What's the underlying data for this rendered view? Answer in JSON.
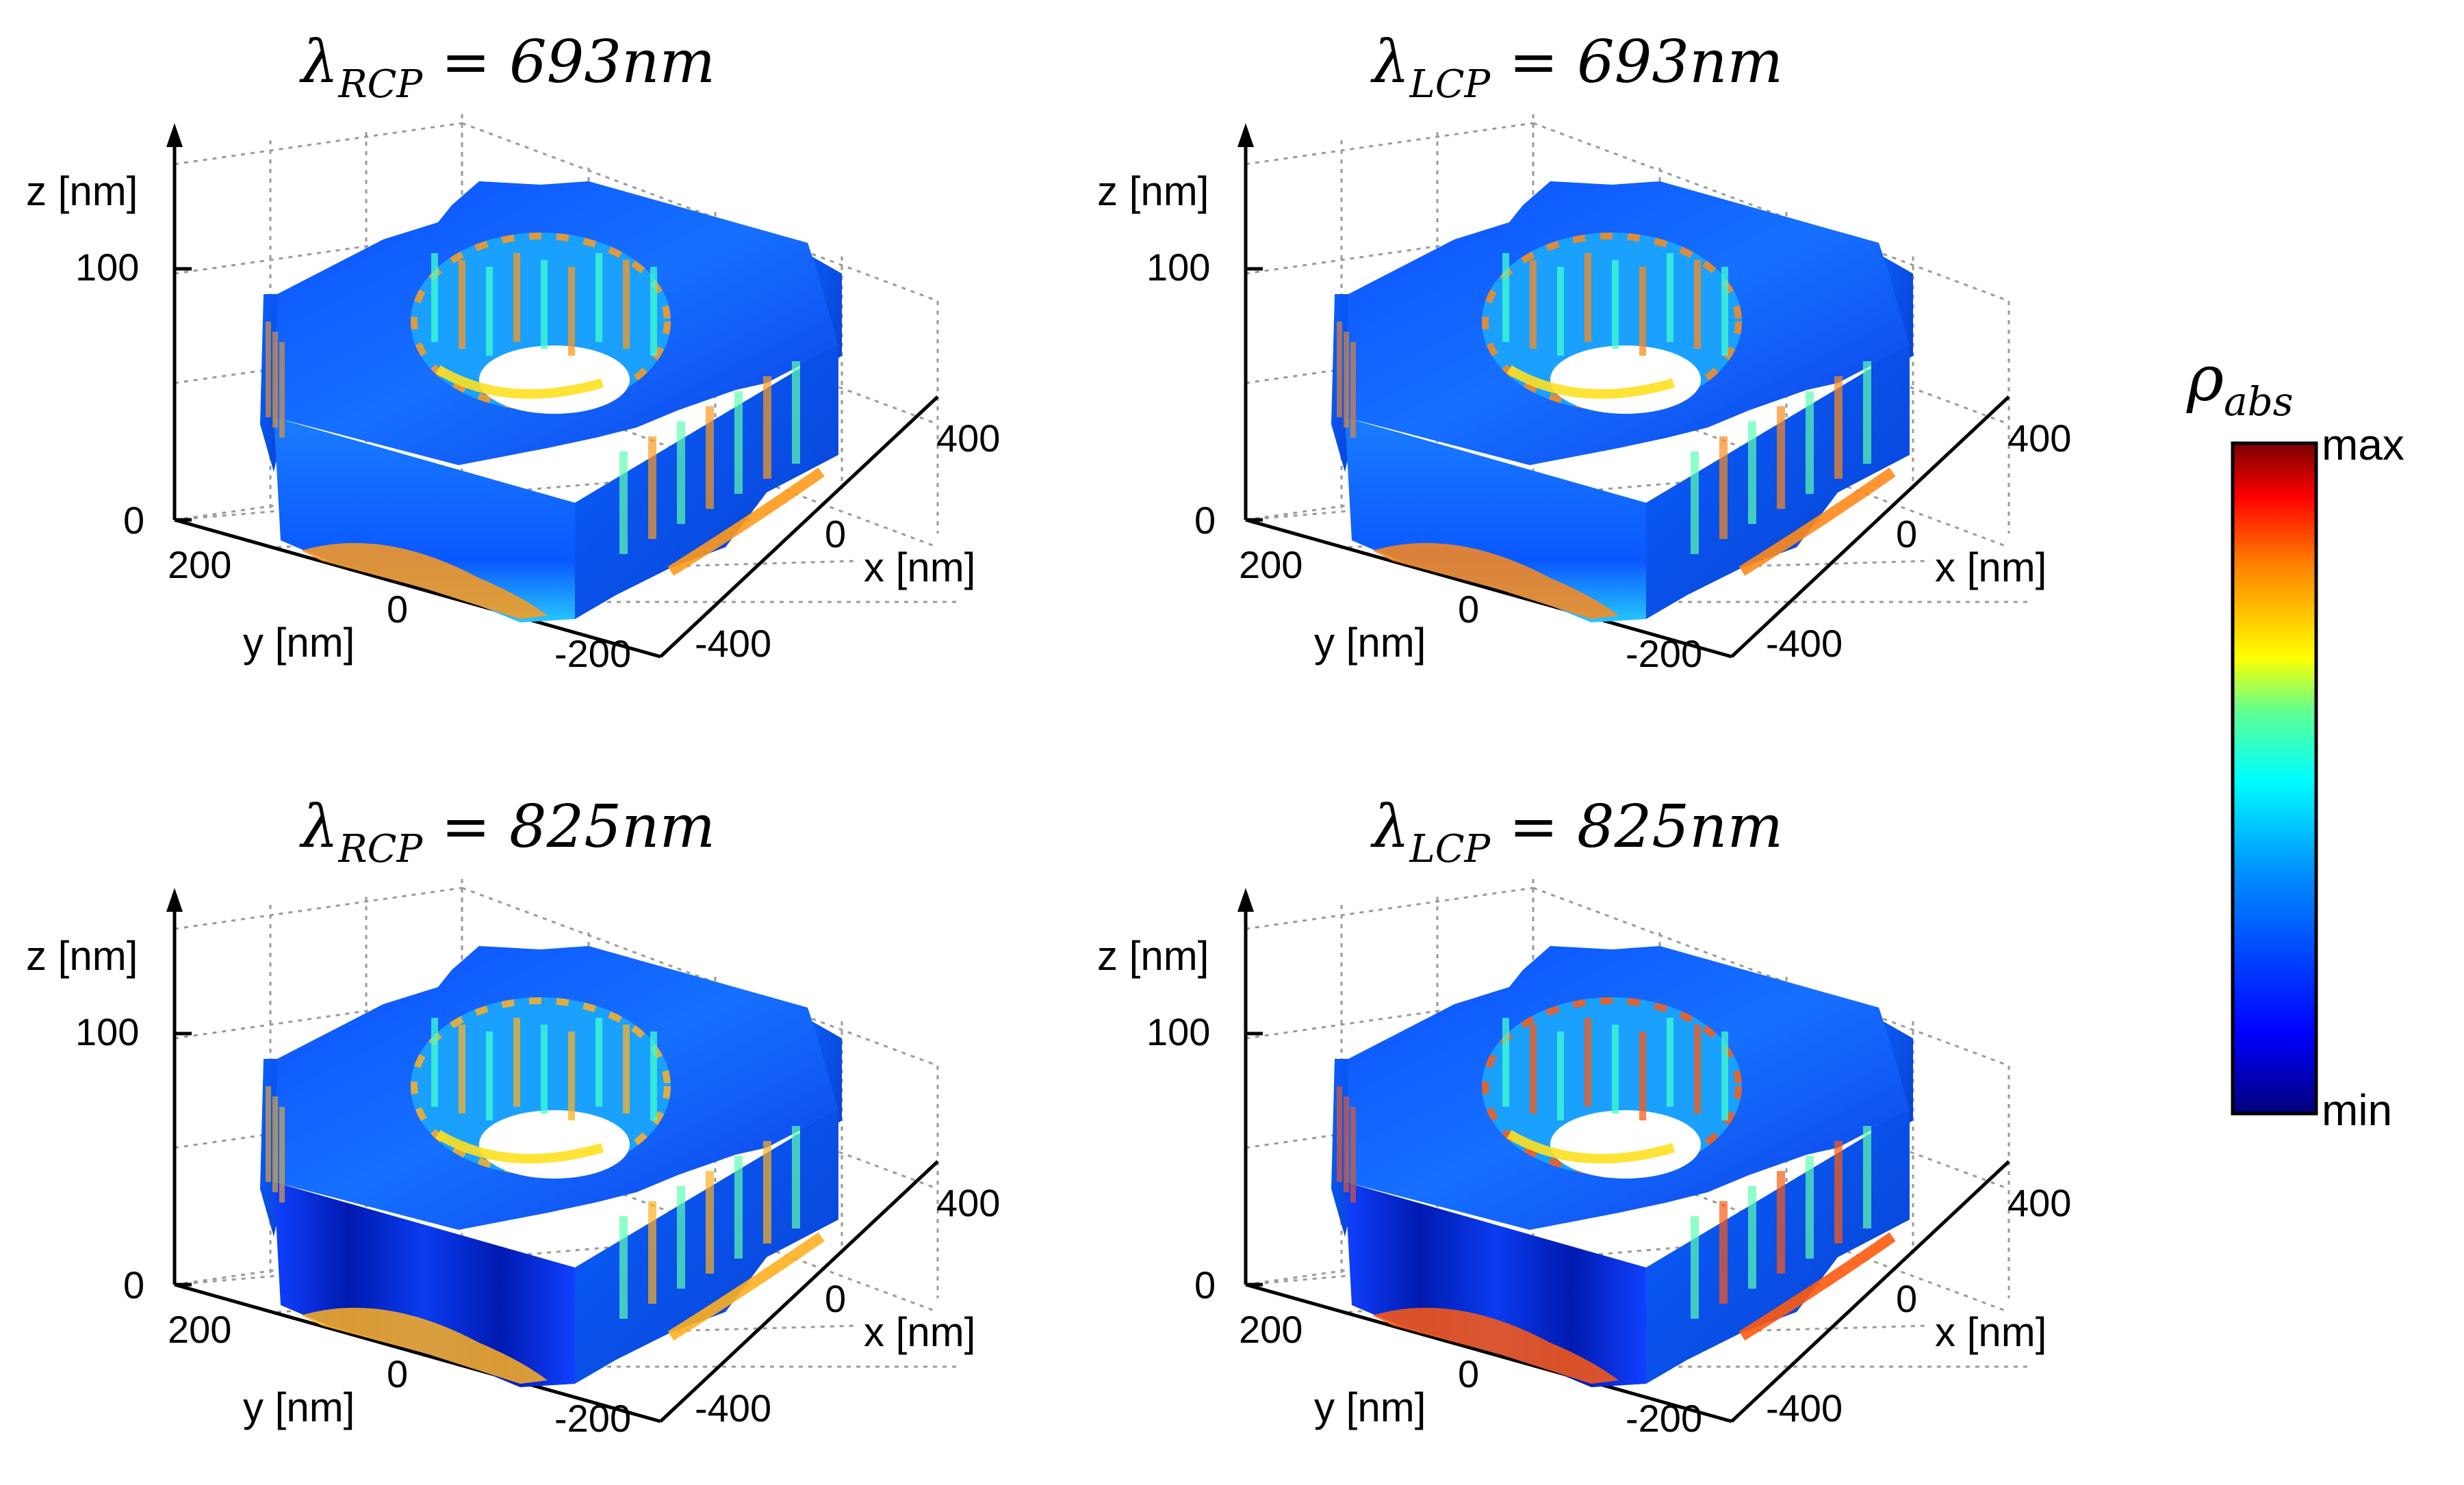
{
  "figure": {
    "panels": [
      {
        "title_main": "λ",
        "title_sub": "RCP",
        "title_rest": " = 693nm",
        "z_label": "z [nm]",
        "y_label": "y [nm]",
        "x_label": "x [nm]",
        "z_ticks": [
          "100",
          "0"
        ],
        "y_ticks": [
          "200",
          "0",
          "-200"
        ],
        "x_ticks": [
          "400",
          "0",
          "-400"
        ],
        "hotspot_color": "#ff9a1a"
      },
      {
        "title_main": "λ",
        "title_sub": "LCP",
        "title_rest": " = 693nm",
        "z_label": "z [nm]",
        "y_label": "y [nm]",
        "x_label": "x [nm]",
        "z_ticks": [
          "100",
          "0"
        ],
        "y_ticks": [
          "200",
          "0",
          "-200"
        ],
        "x_ticks": [
          "400",
          "0",
          "-400"
        ],
        "hotspot_color": "#ff8a1a"
      },
      {
        "title_main": "λ",
        "title_sub": "RCP",
        "title_rest": " = 825nm",
        "z_label": "z [nm]",
        "y_label": "y [nm]",
        "x_label": "x [nm]",
        "z_ticks": [
          "100",
          "0"
        ],
        "y_ticks": [
          "200",
          "0",
          "-200"
        ],
        "x_ticks": [
          "400",
          "0",
          "-400"
        ],
        "hotspot_color": "#ffb020"
      },
      {
        "title_main": "λ",
        "title_sub": "LCP",
        "title_rest": " = 825nm",
        "z_label": "z [nm]",
        "y_label": "y [nm]",
        "x_label": "x [nm]",
        "z_ticks": [
          "100",
          "0"
        ],
        "y_ticks": [
          "200",
          "0",
          "-200"
        ],
        "x_ticks": [
          "400",
          "0",
          "-400"
        ],
        "hotspot_color": "#ff5a10"
      }
    ],
    "colorbar": {
      "title_main": "ρ",
      "title_sub": "abs",
      "max_label": "max",
      "min_label": "min",
      "colors": [
        "#00008f",
        "#0000ff",
        "#0080ff",
        "#00ffff",
        "#80ff80",
        "#ffff00",
        "#ff8000",
        "#ff0000",
        "#800000"
      ]
    }
  }
}
